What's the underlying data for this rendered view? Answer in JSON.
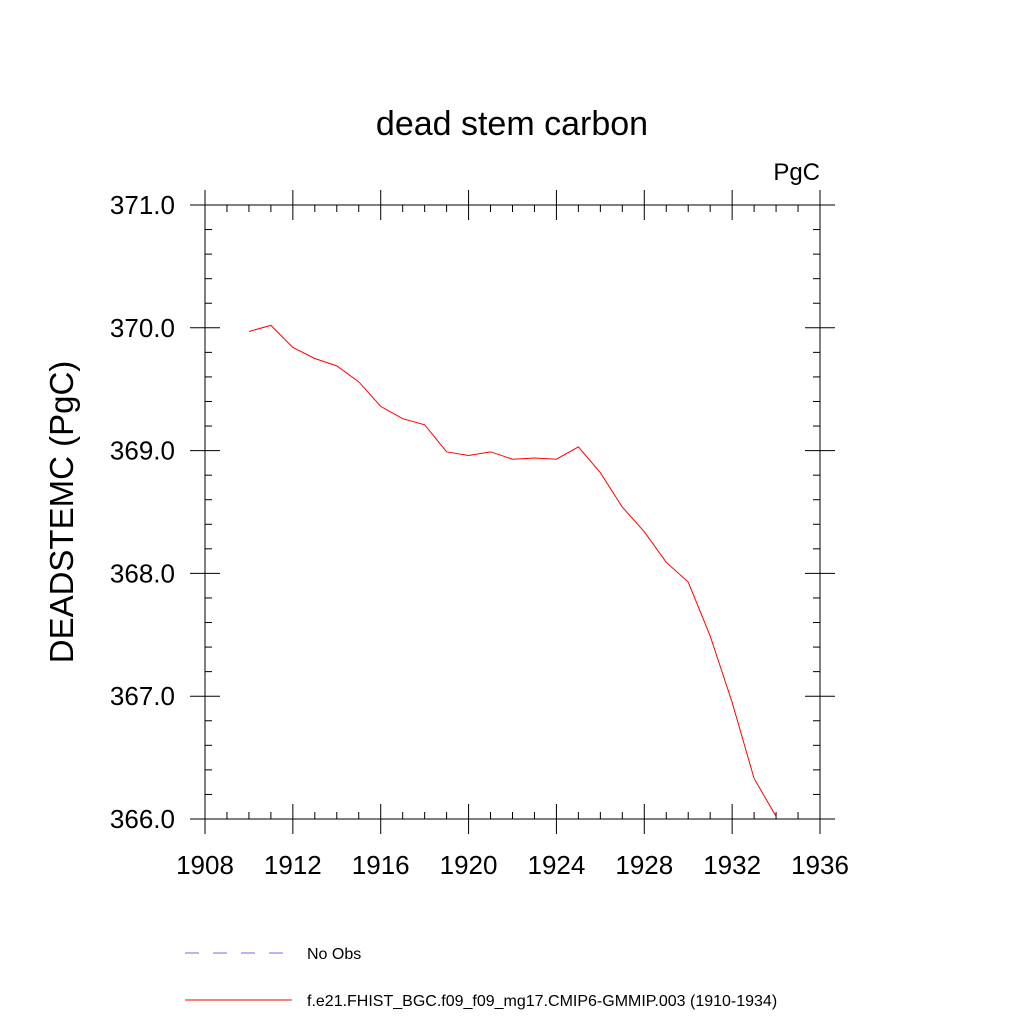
{
  "chart_data": {
    "type": "line",
    "title": "dead stem carbon",
    "units_label": "PgC",
    "ylabel": "DEADSTEMC  (PgC)",
    "xlabel": "",
    "xlim": [
      1908,
      1936
    ],
    "ylim": [
      366.0,
      371.0
    ],
    "x_ticks": [
      1908,
      1912,
      1916,
      1920,
      1924,
      1928,
      1932,
      1936
    ],
    "y_ticks": [
      "366.0",
      "367.0",
      "368.0",
      "369.0",
      "370.0",
      "371.0"
    ],
    "series": [
      {
        "name": "f.e21.FHIST_BGC.f09_f09_mg17.CMIP6-GMMIP.003 (1910-1934)",
        "color": "#ff0000",
        "style": "solid",
        "x": [
          1910,
          1911,
          1912,
          1913,
          1914,
          1915,
          1916,
          1917,
          1918,
          1919,
          1920,
          1921,
          1922,
          1923,
          1924,
          1925,
          1926,
          1927,
          1928,
          1929,
          1930,
          1931,
          1932,
          1933,
          1934
        ],
        "values": [
          369.97,
          370.02,
          369.84,
          369.75,
          369.69,
          369.56,
          369.36,
          369.26,
          369.21,
          368.99,
          368.96,
          368.99,
          368.93,
          368.94,
          368.93,
          369.03,
          368.82,
          368.54,
          368.34,
          368.09,
          367.93,
          367.49,
          366.95,
          366.33,
          366.02
        ]
      }
    ],
    "legend": [
      {
        "label": "No Obs",
        "color": "#7b68ee",
        "style": "dashed"
      },
      {
        "label": "f.e21.FHIST_BGC.f09_f09_mg17.CMIP6-GMMIP.003 (1910-1934)",
        "color": "#ff0000",
        "style": "solid"
      }
    ],
    "legend_position": "bottom"
  }
}
